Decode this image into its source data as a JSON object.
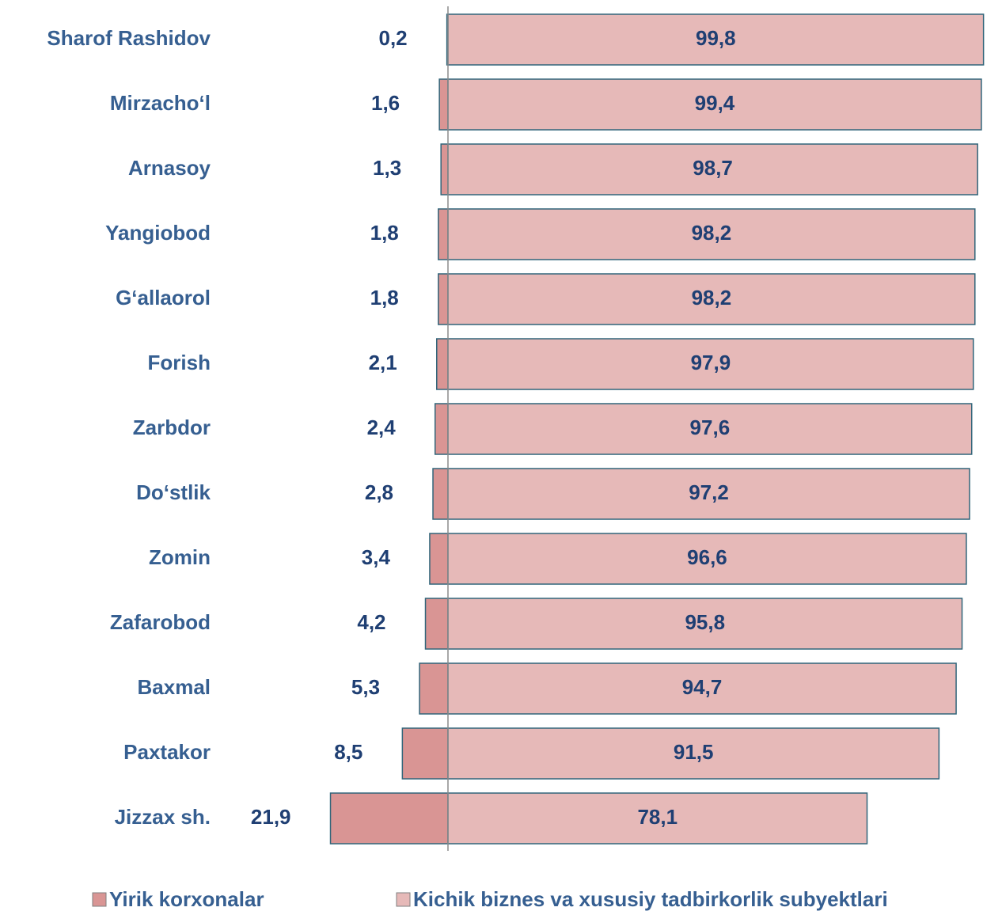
{
  "chart_data": {
    "type": "diverging-bar",
    "categories": [
      "Sharof Rashidov",
      "Mirzacho‘l",
      "Arnasoy",
      "Yangiobod",
      "G‘allaorol",
      "Forish",
      "Zarbdor",
      "Do‘stlik",
      "Zomin",
      "Zafarobod",
      "Baxmal",
      "Paxtakor",
      "Jizzax sh."
    ],
    "series": [
      {
        "name": "Yirik korxonalar",
        "color": "#d99594",
        "values": [
          0.2,
          1.6,
          1.3,
          1.8,
          1.8,
          2.1,
          2.4,
          2.8,
          3.4,
          4.2,
          5.3,
          8.5,
          21.9
        ],
        "value_labels": [
          "0,2",
          "1,6",
          "1,3",
          "1,8",
          "1,8",
          "2,1",
          "2,4",
          "2,8",
          "3,4",
          "4,2",
          "5,3",
          "8,5",
          "21,9"
        ]
      },
      {
        "name": "Kichik biznes va xususiy tadbirkorlik subyektlari",
        "color": "#e6b9b8",
        "values": [
          99.8,
          99.4,
          98.7,
          98.2,
          98.2,
          97.9,
          97.6,
          97.2,
          96.6,
          95.8,
          94.7,
          91.5,
          78.1
        ],
        "value_labels": [
          "99,8",
          "99,4",
          "98,7",
          "98,2",
          "98,2",
          "97,9",
          "97,6",
          "97,2",
          "96,6",
          "95,8",
          "94,7",
          "91,5",
          "78,1"
        ]
      }
    ],
    "legend": "bottom"
  }
}
